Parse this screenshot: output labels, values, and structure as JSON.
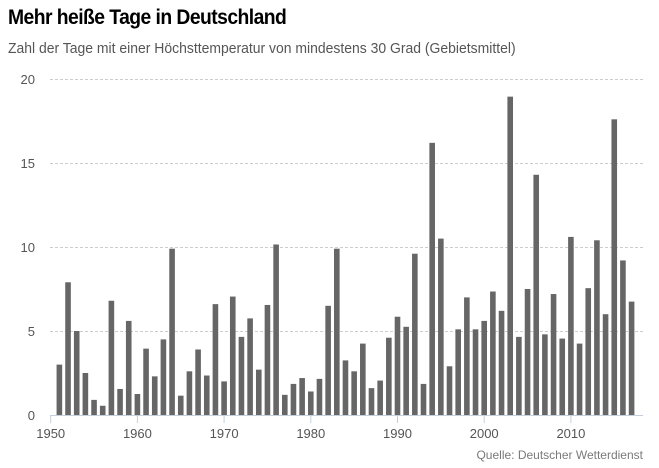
{
  "header": {
    "title": "Mehr heiße Tage in Deutschland",
    "subtitle": "Zahl der Tage mit einer Höchsttemperatur von mindestens 30 Grad (Gebietsmittel)"
  },
  "footer": {
    "source": "Quelle: Deutscher Wetterdienst"
  },
  "colors": {
    "bar": "#666666",
    "grid": "#cccccc",
    "axis": "#c5cfdb",
    "tick_text": "#555555"
  },
  "chart_data": {
    "type": "bar",
    "title": "Mehr heiße Tage in Deutschland",
    "subtitle": "Zahl der Tage mit einer Höchsttemperatur von mindestens 30 Grad (Gebietsmittel)",
    "xlabel": "",
    "ylabel": "",
    "xlim": [
      1950,
      2017
    ],
    "ylim": [
      0,
      20
    ],
    "yticks": [
      0,
      5,
      10,
      15,
      20
    ],
    "xticks": [
      1950,
      1960,
      1970,
      1980,
      1990,
      2000,
      2010
    ],
    "grid": "horizontal-dashed",
    "legend": "none",
    "source": "Quelle: Deutscher Wetterdienst",
    "categories": [
      1951,
      1952,
      1953,
      1954,
      1955,
      1956,
      1957,
      1958,
      1959,
      1960,
      1961,
      1962,
      1963,
      1964,
      1965,
      1966,
      1967,
      1968,
      1969,
      1970,
      1971,
      1972,
      1973,
      1974,
      1975,
      1976,
      1977,
      1978,
      1979,
      1980,
      1981,
      1982,
      1983,
      1984,
      1985,
      1986,
      1987,
      1988,
      1989,
      1990,
      1991,
      1992,
      1993,
      1994,
      1995,
      1996,
      1997,
      1998,
      1999,
      2000,
      2001,
      2002,
      2003,
      2004,
      2005,
      2006,
      2007,
      2008,
      2009,
      2010,
      2011,
      2012,
      2013,
      2014,
      2015,
      2016,
      2017
    ],
    "values": [
      3.0,
      7.9,
      5.0,
      2.5,
      0.9,
      0.55,
      6.8,
      1.55,
      5.6,
      1.25,
      3.95,
      2.3,
      4.5,
      9.9,
      1.15,
      2.6,
      3.9,
      2.35,
      6.6,
      2.0,
      7.05,
      4.65,
      5.75,
      2.7,
      6.55,
      10.15,
      1.2,
      1.85,
      2.2,
      1.4,
      2.15,
      6.5,
      9.9,
      3.25,
      2.6,
      4.25,
      1.6,
      2.05,
      4.6,
      5.85,
      5.25,
      9.6,
      1.85,
      16.2,
      10.5,
      2.9,
      5.1,
      7.0,
      5.1,
      5.6,
      7.35,
      6.2,
      18.95,
      4.65,
      7.5,
      14.3,
      4.8,
      7.2,
      4.55,
      10.6,
      4.25,
      7.55,
      10.4,
      6.0,
      17.6,
      9.2,
      6.75
    ]
  }
}
